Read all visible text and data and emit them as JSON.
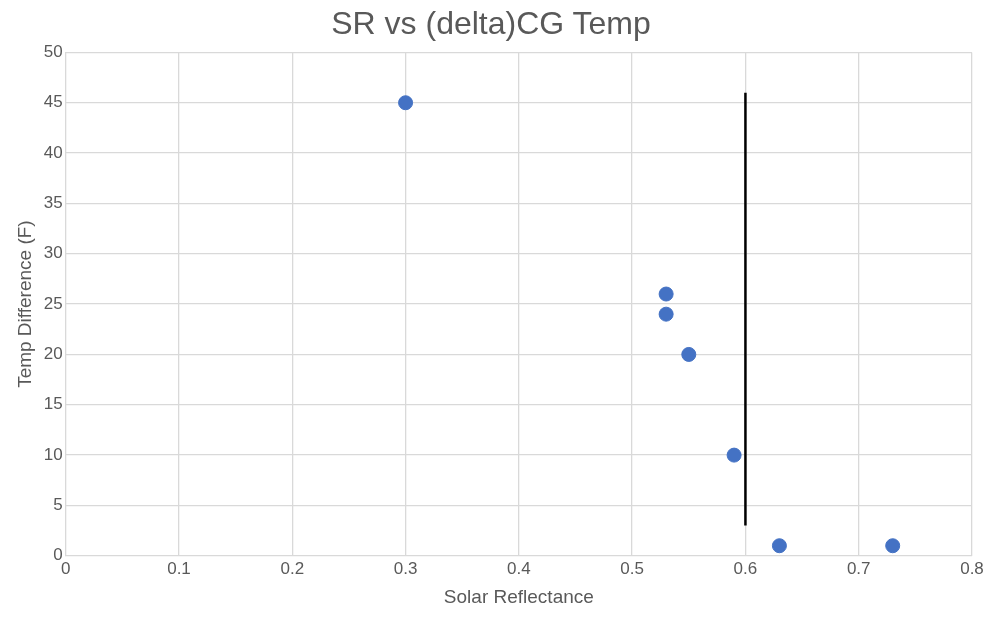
{
  "chart_data": {
    "type": "scatter",
    "title": "SR vs (delta)CG Temp",
    "xlabel": "Solar Reflectance",
    "ylabel": "Temp Difference (F)",
    "series": [
      {
        "type": "scatter",
        "color": "#4472c4",
        "marker": "circle",
        "x": [
          0.3,
          0.53,
          0.53,
          0.55,
          0.59,
          0.63,
          0.73
        ],
        "values": [
          45,
          26,
          24,
          20,
          10,
          1,
          1
        ]
      },
      {
        "type": "line",
        "color": "#000000",
        "marker": "none",
        "line_style": "solid",
        "x": [
          0.6,
          0.6
        ],
        "values": [
          3,
          46
        ]
      }
    ],
    "xlim": [
      0,
      0.8
    ],
    "xticks": [
      0,
      0.1,
      0.2,
      0.3,
      0.4,
      0.5,
      0.6,
      0.7,
      0.8
    ],
    "ylim": [
      0,
      50
    ],
    "yticks": [
      0,
      5,
      10,
      15,
      20,
      25,
      30,
      35,
      40,
      45,
      50
    ],
    "grid": true,
    "legend": false
  }
}
